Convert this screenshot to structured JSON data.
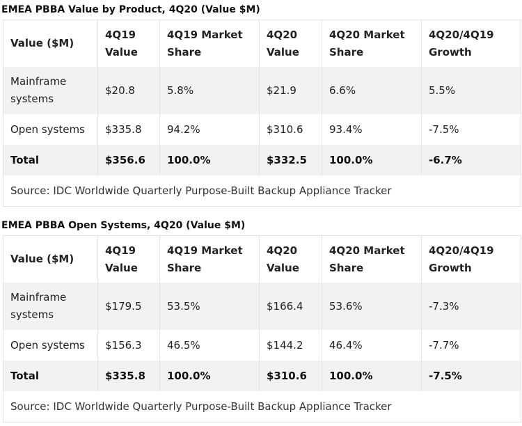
{
  "tables": [
    {
      "title": "EMEA PBBA Value by Product, 4Q20 (Value $M)",
      "headers": [
        "Value ($M)",
        "4Q19 Value",
        "4Q19 Market Share",
        "4Q20 Value",
        "4Q20 Market Share",
        "4Q20/4Q19 Growth"
      ],
      "rows": [
        [
          "Mainframe systems",
          "$20.8",
          "5.8%",
          "$21.9",
          "6.6%",
          "5.5%"
        ],
        [
          "Open systems",
          "$335.8",
          "94.2%",
          "$310.6",
          "93.4%",
          "-7.5%"
        ],
        [
          "Total",
          "$356.6",
          "100.0%",
          "$332.5",
          "100.0%",
          "-6.7%"
        ]
      ],
      "source": "Source: IDC Worldwide Quarterly Purpose-Built Backup Appliance Tracker"
    },
    {
      "title": "EMEA PBBA Open Systems, 4Q20 (Value $M)",
      "headers": [
        "Value ($M)",
        "4Q19 Value",
        "4Q19 Market Share",
        "4Q20 Value",
        "4Q20 Market Share",
        "4Q20/4Q19 Growth"
      ],
      "rows": [
        [
          "Mainframe systems",
          "$179.5",
          "53.5%",
          "$166.4",
          "53.6%",
          "-7.3%"
        ],
        [
          "Open systems",
          "$156.3",
          "46.5%",
          "$144.2",
          "46.4%",
          "-7.7%"
        ],
        [
          "Total",
          "$335.8",
          "100.0%",
          "$310.6",
          "100.0%",
          "-7.5%"
        ]
      ],
      "source": "Source: IDC Worldwide Quarterly Purpose-Built Backup Appliance Tracker"
    }
  ]
}
